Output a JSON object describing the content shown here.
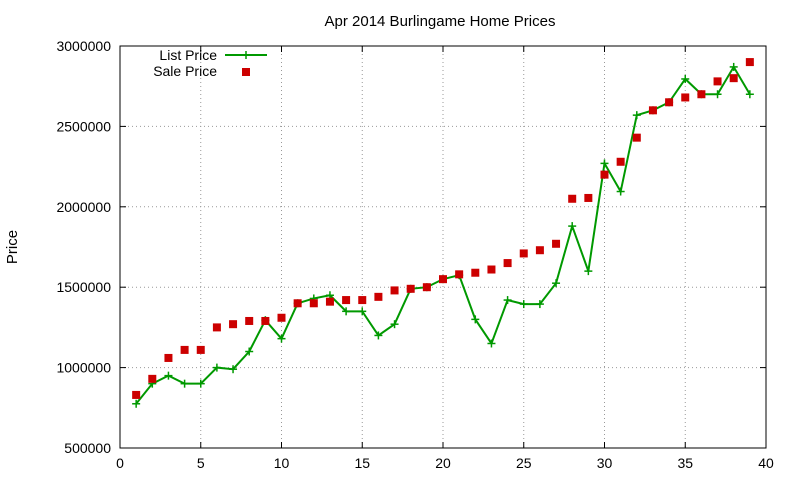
{
  "chart_data": {
    "type": "line",
    "title": "Apr 2014 Burlingame Home Prices",
    "xlabel": "",
    "ylabel": "Price",
    "xlim": [
      0,
      40
    ],
    "ylim": [
      500000,
      3000000
    ],
    "xticks": [
      0,
      5,
      10,
      15,
      20,
      25,
      30,
      35,
      40
    ],
    "xtick_labels": [
      "0",
      "5",
      "10",
      "15",
      "20",
      "25",
      "30",
      "35",
      "40"
    ],
    "yticks": [
      500000,
      1000000,
      1500000,
      2000000,
      2500000,
      3000000
    ],
    "ytick_labels": [
      "500000",
      "1000000",
      "1500000",
      "2000000",
      "2500000",
      "3000000"
    ],
    "grid": true,
    "legend_position": "top-left",
    "x": [
      1,
      2,
      3,
      4,
      5,
      6,
      7,
      8,
      9,
      10,
      11,
      12,
      13,
      14,
      15,
      16,
      17,
      18,
      19,
      20,
      21,
      22,
      23,
      24,
      25,
      26,
      27,
      28,
      29,
      30,
      31,
      32,
      33,
      34,
      35,
      36,
      37,
      38,
      39
    ],
    "series": [
      {
        "name": "List Price",
        "style": "line-cross",
        "color": "#009900",
        "values": [
          775000,
          900000,
          950000,
          900000,
          900000,
          1000000,
          990000,
          1100000,
          1295000,
          1180000,
          1400000,
          1430000,
          1450000,
          1350000,
          1350000,
          1200000,
          1270000,
          1490000,
          1500000,
          1550000,
          1575000,
          1300000,
          1150000,
          1420000,
          1395000,
          1395000,
          1525000,
          1880000,
          1600000,
          2270000,
          2095000,
          2570000,
          2600000,
          2650000,
          2795000,
          2700000,
          2700000,
          2870000,
          2700000
        ]
      },
      {
        "name": "Sale Price",
        "style": "square",
        "color": "#cc0000",
        "values": [
          830000,
          930000,
          1060000,
          1110000,
          1110000,
          1250000,
          1270000,
          1290000,
          1290000,
          1310000,
          1400000,
          1400000,
          1410000,
          1420000,
          1420000,
          1440000,
          1480000,
          1490000,
          1500000,
          1550000,
          1580000,
          1590000,
          1610000,
          1650000,
          1710000,
          1730000,
          1770000,
          2050000,
          2055000,
          2200000,
          2280000,
          2430000,
          2600000,
          2650000,
          2680000,
          2700000,
          2780000,
          2800000,
          2900000
        ]
      }
    ]
  }
}
